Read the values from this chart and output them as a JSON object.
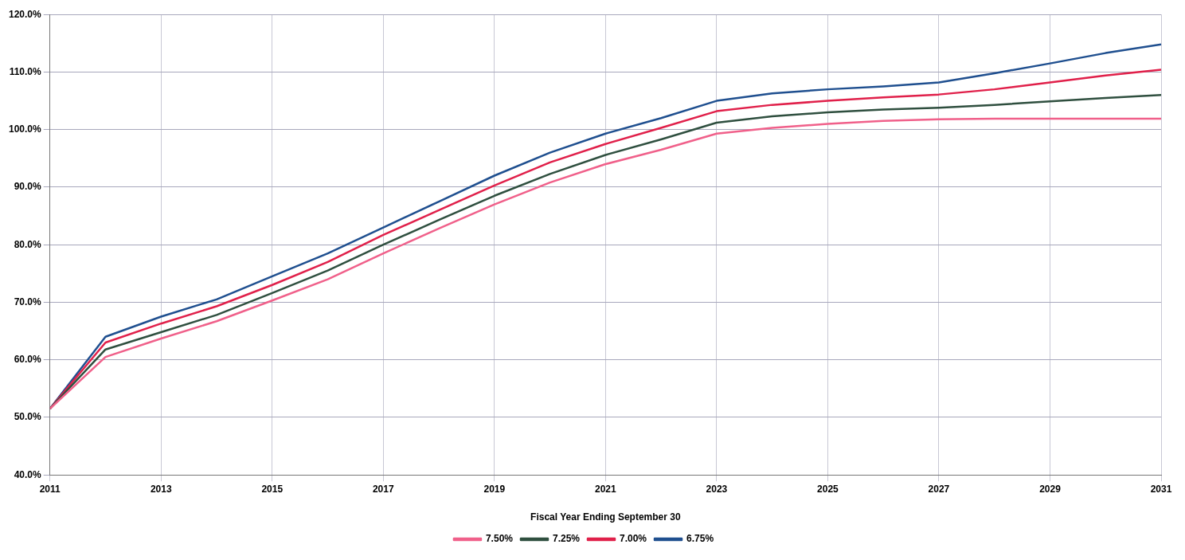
{
  "chart_data": {
    "type": "line",
    "xlabel": "Fiscal Year Ending September 30",
    "x": [
      2011,
      2012,
      2013,
      2014,
      2015,
      2016,
      2017,
      2018,
      2019,
      2020,
      2021,
      2022,
      2023,
      2024,
      2025,
      2026,
      2027,
      2028,
      2029,
      2030,
      2031
    ],
    "series": [
      {
        "name": "7.50%",
        "color": "#f0608a",
        "values": [
          51.5,
          60.5,
          63.7,
          66.7,
          70.3,
          74,
          78.5,
          82.8,
          87,
          90.8,
          94,
          96.5,
          99.3,
          100.3,
          101,
          101.5,
          101.8,
          101.9,
          101.9,
          101.9,
          101.9
        ]
      },
      {
        "name": "7.25%",
        "color": "#2f4f3f",
        "values": [
          51.5,
          61.8,
          64.8,
          67.8,
          71.6,
          75.5,
          80,
          84.3,
          88.5,
          92.3,
          95.6,
          98.3,
          101.2,
          102.3,
          103,
          103.5,
          103.8,
          104.3,
          104.9,
          105.5,
          106
        ]
      },
      {
        "name": "7.00%",
        "color": "#e0204a",
        "values": [
          51.5,
          63,
          66.3,
          69.3,
          73,
          77,
          81.7,
          86,
          90.3,
          94.3,
          97.5,
          100.3,
          103.2,
          104.3,
          105,
          105.6,
          106.1,
          107,
          108.2,
          109.4,
          110.4
        ]
      },
      {
        "name": "6.75%",
        "color": "#1f4f8f",
        "values": [
          51.5,
          64,
          67.5,
          70.5,
          74.5,
          78.5,
          83,
          87.5,
          92,
          96,
          99.3,
          102,
          105,
          106.3,
          107,
          107.5,
          108.2,
          109.8,
          111.5,
          113.3,
          114.8
        ]
      }
    ],
    "xlim": [
      2011,
      2031
    ],
    "xticks": [
      2011,
      2013,
      2015,
      2017,
      2019,
      2021,
      2023,
      2025,
      2027,
      2029,
      2031
    ],
    "ylim": [
      40,
      120
    ],
    "yticks": [
      {
        "value": 40,
        "label": "40.0%"
      },
      {
        "value": 50,
        "label": "50.0%"
      },
      {
        "value": 60,
        "label": "60.0%"
      },
      {
        "value": 70,
        "label": "70.0%"
      },
      {
        "value": 80,
        "label": "80.0%"
      },
      {
        "value": 90,
        "label": "90.0%"
      },
      {
        "value": 100,
        "label": "100.0%"
      },
      {
        "value": 110,
        "label": "110.0%"
      },
      {
        "value": 120,
        "label": "120.0%"
      }
    ],
    "grid": true,
    "legend": "bottom",
    "marker": "none",
    "line_style": "solid"
  }
}
